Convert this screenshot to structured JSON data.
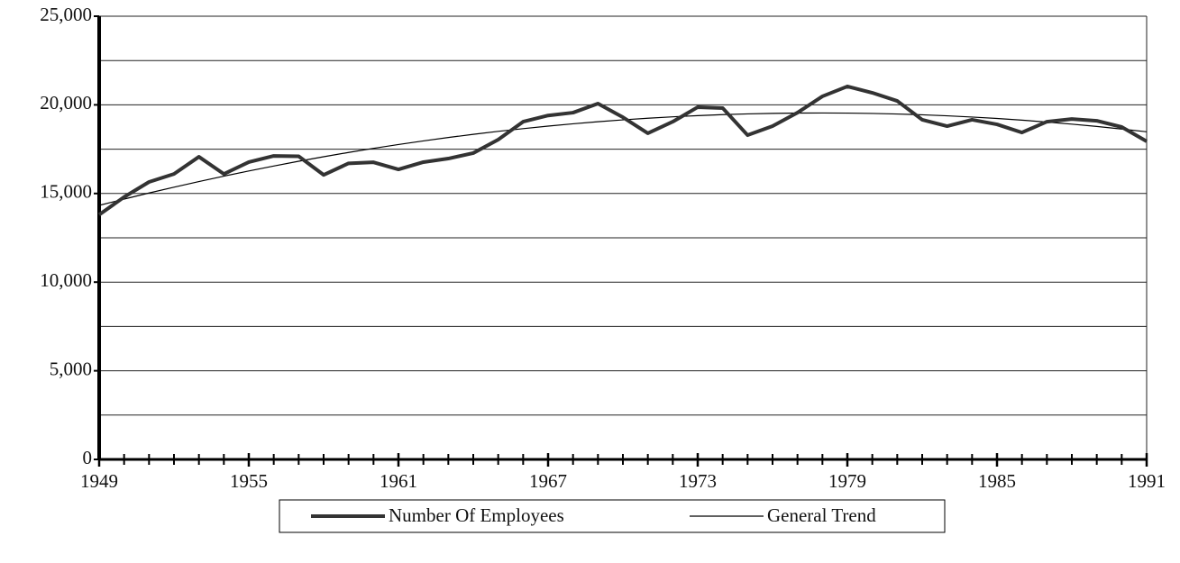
{
  "chart_data": {
    "type": "line",
    "x": [
      1949,
      1950,
      1951,
      1952,
      1953,
      1954,
      1955,
      1956,
      1957,
      1958,
      1959,
      1960,
      1961,
      1962,
      1963,
      1964,
      1965,
      1966,
      1967,
      1968,
      1969,
      1970,
      1971,
      1972,
      1973,
      1974,
      1975,
      1976,
      1977,
      1978,
      1979,
      1980,
      1981,
      1982,
      1983,
      1984,
      1985,
      1986,
      1987,
      1988,
      1989,
      1990,
      1991
    ],
    "series": [
      {
        "name": "Number Of Employees",
        "color": "#333333",
        "width": 4,
        "values": [
          13800,
          14800,
          15650,
          16100,
          17070,
          16100,
          16770,
          17120,
          17100,
          16050,
          16700,
          16760,
          16360,
          16770,
          16970,
          17280,
          18040,
          19050,
          19400,
          19560,
          20070,
          19300,
          18400,
          19050,
          19870,
          19820,
          18290,
          18800,
          19560,
          20480,
          21040,
          20680,
          20220,
          19160,
          18800,
          19160,
          18900,
          18440,
          19050,
          19200,
          19100,
          18750,
          17940
        ]
      },
      {
        "name": "General Trend",
        "color": "#000000",
        "width": 1.2,
        "values": [
          14330,
          14685,
          15027,
          15357,
          15674,
          15979,
          16271,
          16551,
          16819,
          17074,
          17315,
          17545,
          17762,
          17966,
          18158,
          18337,
          18504,
          18659,
          18801,
          18931,
          19048,
          19152,
          19244,
          19324,
          19392,
          19447,
          19489,
          19519,
          19537,
          19542,
          19535,
          19515,
          19483,
          19439,
          19382,
          19313,
          19231,
          19137,
          19031,
          18912,
          18780,
          18637,
          18481
        ]
      }
    ],
    "xlim": [
      1949,
      1991
    ],
    "xticks": [
      1949,
      1955,
      1961,
      1967,
      1973,
      1979,
      1985,
      1991
    ],
    "ylim": [
      0,
      25000
    ],
    "yticks": [
      0,
      {
        "value": 5000,
        "label": "5,000"
      },
      {
        "value": 10000,
        "label": "10,000"
      },
      {
        "value": 15000,
        "label": "15,000"
      },
      {
        "value": 20000,
        "label": "20,000"
      },
      {
        "value": 25000,
        "label": "25,000"
      }
    ],
    "y_gridlines": [
      2500,
      5000,
      7500,
      10000,
      12500,
      15000,
      17500,
      20000,
      22500,
      25000
    ],
    "grid": true,
    "legend": "bottom"
  }
}
